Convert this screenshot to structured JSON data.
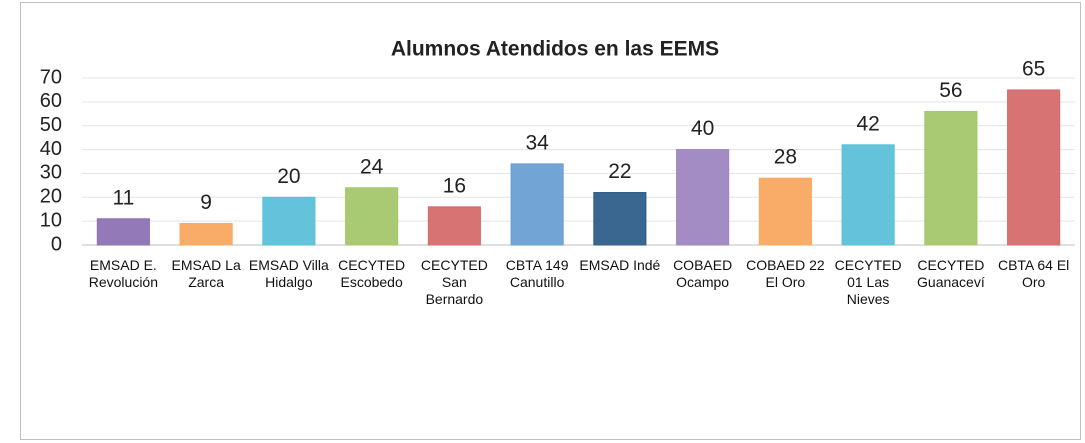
{
  "chart_data": {
    "type": "bar",
    "title": "Alumnos Atendidos en las EEMS",
    "categories": [
      "EMSAD E. Revolución",
      "EMSAD La Zarca",
      "EMSAD Villa Hidalgo",
      "CECYTED Escobedo",
      "CECYTED San Bernardo",
      "CBTA 149 Canutillo",
      "EMSAD Indé",
      "COBAED Ocampo",
      "COBAED 22 El Oro",
      "CECYTED 01 Las Nieves",
      "CECYTED Guanaceví",
      "CBTA 64 El Oro"
    ],
    "values": [
      11,
      9,
      20,
      24,
      16,
      34,
      22,
      40,
      28,
      42,
      56,
      65
    ],
    "colors": [
      "#8e72b4",
      "#f9a85f",
      "#5bc0d8",
      "#a4c76a",
      "#d56b6b",
      "#6a9fd4",
      "#2e5f8a",
      "#9e86c0",
      "#f9a85f",
      "#5bc0d8",
      "#a4c76a",
      "#d56b6b"
    ],
    "ylim": [
      0,
      70
    ],
    "yticks": [
      0,
      10,
      20,
      30,
      40,
      50,
      60,
      70
    ],
    "grid": true
  }
}
